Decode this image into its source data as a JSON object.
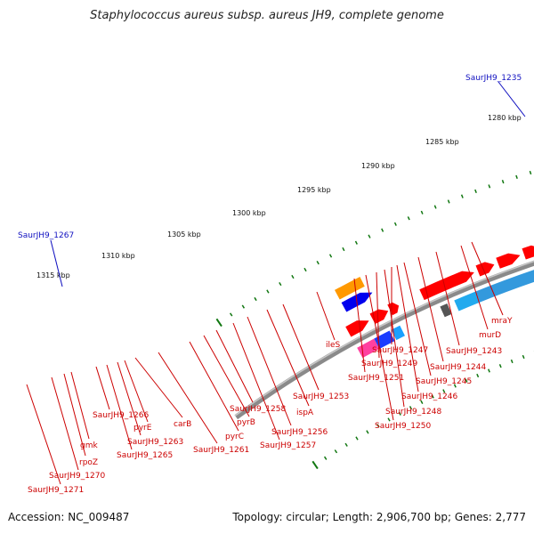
{
  "title": "Staphylococcus aureus subsp. aureus JH9, complete genome",
  "footer": {
    "accession": "Accession: NC_009487",
    "topology": "Topology: circular; Length: 2,906,700 bp; Genes: 2,777"
  },
  "scale": [
    "1280 kbp",
    "1285 kbp",
    "1290 kbp",
    "1295 kbp",
    "1300 kbp",
    "1305 kbp",
    "1310 kbp",
    "1315 kbp"
  ],
  "callouts": [
    "SaurJH9_1235",
    "SaurJH9_1267"
  ],
  "gene_labels": [
    "mraY",
    "murD",
    "SaurJH9_1243",
    "SaurJH9_1244",
    "SaurJH9_1245",
    "SaurJH9_1246",
    "SaurJH9_1247",
    "SaurJH9_1248",
    "SaurJH9_1249",
    "SaurJH9_1250",
    "SaurJH9_1251",
    "ileS",
    "SaurJH9_1253",
    "ispA",
    "SaurJH9_1256",
    "SaurJH9_1257",
    "SaurJH9_1258",
    "pyrB",
    "pyrC",
    "SaurJH9_1261",
    "carB",
    "pyrE",
    "SaurJH9_1263",
    "SaurJH9_1265",
    "SaurJH9_1266",
    "gmk",
    "rpoZ",
    "SaurJH9_1270",
    "SaurJH9_1271"
  ],
  "colors": {
    "backbone": "#8a8a8a",
    "cds_forward": "#ff0000",
    "tick": "#117711",
    "label": "#cc0000",
    "callout": "#1010c0"
  }
}
